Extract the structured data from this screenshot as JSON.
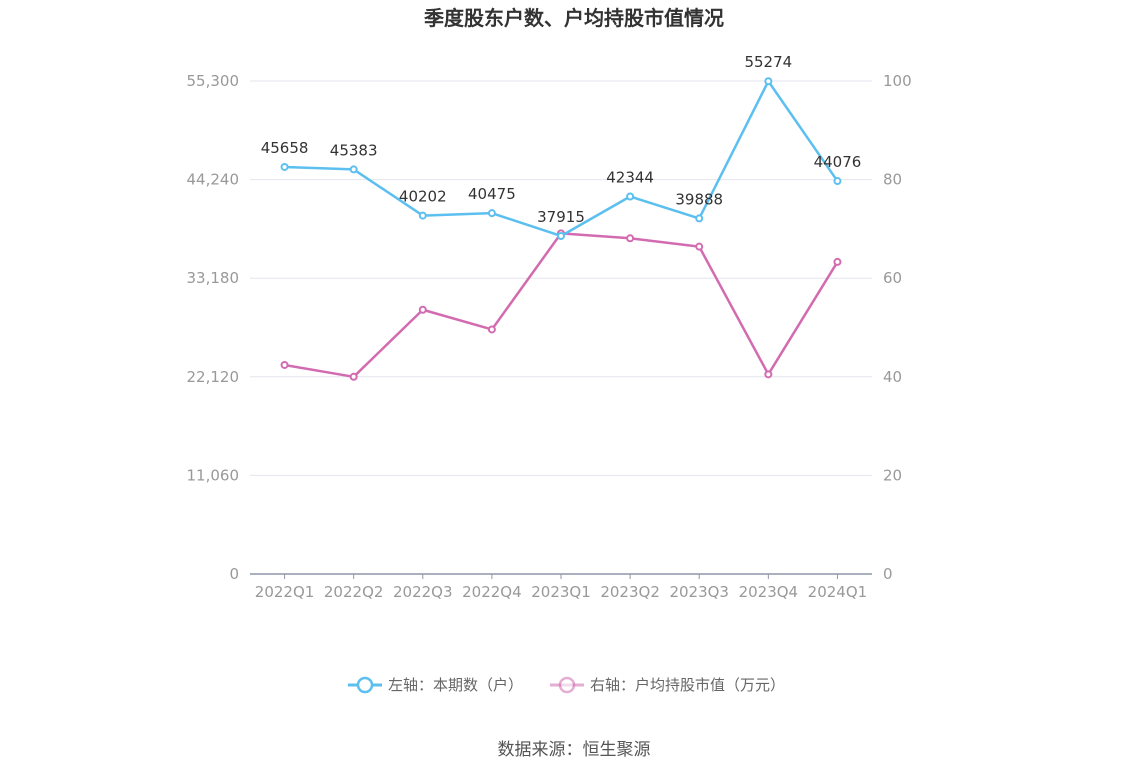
{
  "chart_data": {
    "type": "line",
    "title": "季度股东户数、户均持股市值情况",
    "categories": [
      "2022Q1",
      "2022Q2",
      "2022Q3",
      "2022Q4",
      "2023Q1",
      "2023Q2",
      "2023Q3",
      "2023Q4",
      "2024Q1"
    ],
    "series": [
      {
        "name": "左轴：本期数（户）",
        "axis": "left",
        "color": "#5bbfef",
        "values": [
          45658,
          45383,
          40202,
          40475,
          37915,
          42344,
          39888,
          55274,
          44076
        ],
        "show_labels": true
      },
      {
        "name": "右轴：户均持股市值（万元）",
        "axis": "right",
        "color": "#d36bb0",
        "values": [
          42.4,
          40.0,
          53.6,
          49.6,
          69.1,
          68.1,
          66.4,
          40.5,
          63.3
        ],
        "show_labels": false
      }
    ],
    "y_left": {
      "ticks": [
        "0",
        "11,060",
        "22,120",
        "33,180",
        "44,240",
        "55,300"
      ],
      "ylim": [
        0,
        55300
      ]
    },
    "y_right": {
      "ticks": [
        "0",
        "20",
        "40",
        "60",
        "80",
        "100"
      ],
      "ylim": [
        0,
        100
      ]
    },
    "grid": true,
    "legend_position": "bottom"
  },
  "source_text": "数据来源：恒生聚源"
}
